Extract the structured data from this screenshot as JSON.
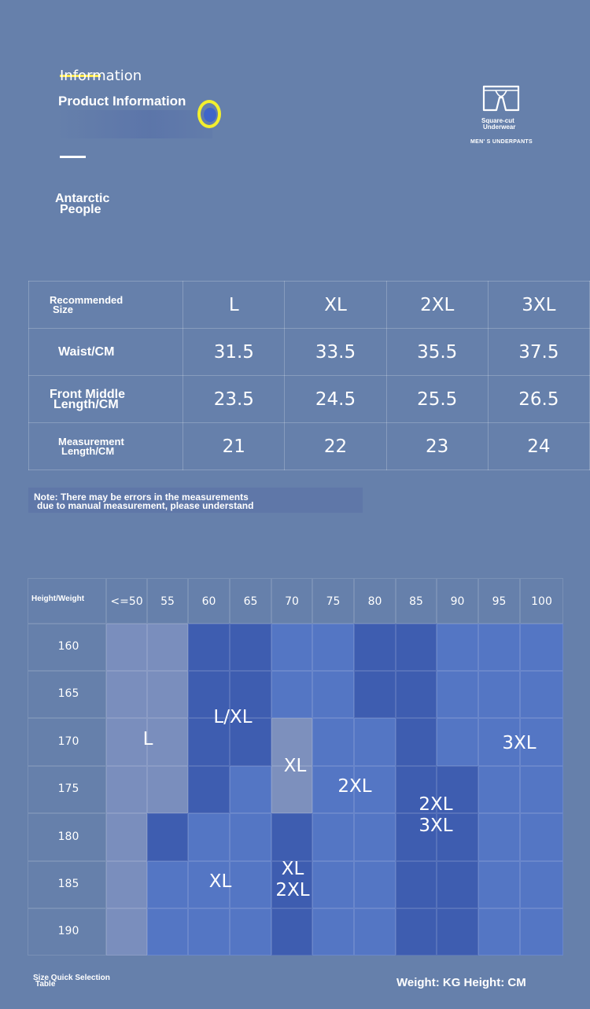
{
  "header": {
    "small_title": "Information",
    "title": "Product Information",
    "brand_line1": "Antarctic",
    "brand_line2": "People",
    "logo_caption_line1": "Square-cut",
    "logo_caption_line2": "Underwear",
    "logo_subtitle": "MEN' S UNDERPANTS",
    "colors": {
      "highlight": "#ffe94a",
      "accent_ring": "#f3ef2d",
      "background": "#6680ab"
    }
  },
  "size_table": {
    "header_label_line1": "Recommended",
    "header_label_line2": "Size",
    "sizes": [
      "L",
      "XL",
      "2XL",
      "3XL"
    ],
    "rows": [
      {
        "label_line1": "Waist/CM",
        "label_line2": "",
        "values": [
          "31.5",
          "33.5",
          "35.5",
          "37.5"
        ]
      },
      {
        "label_line1": "Front Middle",
        "label_line2": "Length/CM",
        "values": [
          "23.5",
          "24.5",
          "25.5",
          "26.5"
        ]
      },
      {
        "label_line1": "Measurement",
        "label_line2": "Length/CM",
        "values": [
          "21",
          "22",
          "23",
          "24"
        ]
      }
    ]
  },
  "note": {
    "line1": "Note: There may be errors in the measurements",
    "line2": "due to manual measurement, please understand"
  },
  "quick_table": {
    "corner_label": "Height/Weight",
    "weights": [
      "<=50",
      "55",
      "60",
      "65",
      "70",
      "75",
      "80",
      "85",
      "90",
      "95",
      "100"
    ],
    "heights": [
      "160",
      "165",
      "170",
      "175",
      "180",
      "185",
      "190"
    ],
    "zone_labels": {
      "l": "L",
      "l_xl": "L/XL",
      "xl_a": "XL",
      "two_xl": "2XL",
      "two_xl_three_xl_1": "2XL",
      "two_xl_three_xl_2": "3XL",
      "three_xl": "3XL",
      "xl_b": "XL",
      "xl_2xl_1": "XL",
      "xl_2xl_2": "2XL"
    },
    "colors": {
      "L": "#7a8ebd",
      "dark": "#3e5db0",
      "mid": "#5476c4",
      "xl": "#7d90bd",
      "empty": "#6a83b6"
    },
    "cell_map": [
      [
        "L",
        "L",
        "dark",
        "dark",
        "mid",
        "mid",
        "dark",
        "dark",
        "mid",
        "mid",
        "mid"
      ],
      [
        "L",
        "L",
        "dark",
        "dark",
        "mid",
        "mid",
        "dark",
        "dark",
        "mid",
        "mid",
        "mid"
      ],
      [
        "L",
        "L",
        "dark",
        "dark",
        "xl",
        "mid",
        "mid",
        "dark",
        "mid",
        "mid",
        "mid"
      ],
      [
        "L",
        "L",
        "dark",
        "mid",
        "xl",
        "mid",
        "mid",
        "dark",
        "dark",
        "mid",
        "mid"
      ],
      [
        "L",
        "dark",
        "mid",
        "mid",
        "dark",
        "mid",
        "mid",
        "dark",
        "dark",
        "mid",
        "mid"
      ],
      [
        "L",
        "mid",
        "mid",
        "mid",
        "dark",
        "mid",
        "mid",
        "dark",
        "dark",
        "mid",
        "mid"
      ],
      [
        "L",
        "mid",
        "mid",
        "mid",
        "dark",
        "mid",
        "mid",
        "dark",
        "dark",
        "mid",
        "mid"
      ]
    ]
  },
  "footer": {
    "left_line1": "Size Quick Selection",
    "left_line2": "Table",
    "right": "Weight: KG Height: CM"
  }
}
